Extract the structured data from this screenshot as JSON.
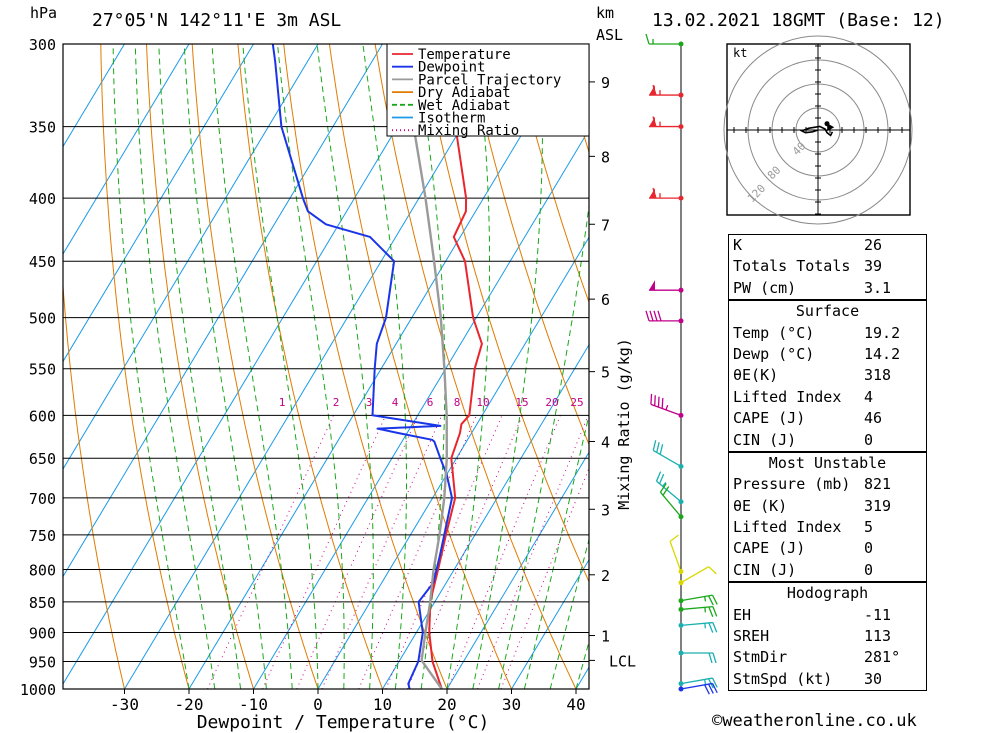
{
  "header": {
    "location": "27°05'N 142°11'E 3m ASL",
    "datetime": "13.02.2021 18GMT (Base: 12)",
    "p_unit": "hPa",
    "km_unit": "km",
    "asl": "ASL"
  },
  "chart_data": {
    "type": "line",
    "title": "",
    "xlabel": "Dewpoint / Temperature (°C)",
    "ylabel": "hPa",
    "secondary_ylabel": "Mixing Ratio (g/kg)",
    "xlim": [
      -40,
      40
    ],
    "ylim": [
      1000,
      300
    ],
    "skew": "skew-T log-p",
    "pressure_ticks": [
      300,
      350,
      400,
      450,
      500,
      550,
      600,
      650,
      700,
      750,
      800,
      850,
      900,
      950,
      1000
    ],
    "temp_ticks": [
      -30,
      -20,
      -10,
      0,
      10,
      20,
      30,
      40
    ],
    "km_ticks": [
      {
        "p": 322,
        "label": "9"
      },
      {
        "p": 370,
        "label": "8"
      },
      {
        "p": 420,
        "label": "7"
      },
      {
        "p": 483,
        "label": "6"
      },
      {
        "p": 553,
        "label": "5"
      },
      {
        "p": 630,
        "label": "4"
      },
      {
        "p": 715,
        "label": "3"
      },
      {
        "p": 808,
        "label": "2"
      },
      {
        "p": 905,
        "label": "1"
      },
      {
        "p": 948,
        "label": "LCL"
      }
    ],
    "mixing_ratio_labels": [
      "1",
      "2",
      "3",
      "4",
      "6",
      "8",
      "10",
      "15",
      "20",
      "25"
    ],
    "mixing_ratio_values": [
      1,
      2,
      3,
      4,
      6,
      8,
      10,
      15,
      20,
      25
    ],
    "legend": [
      {
        "label": "Temperature",
        "color": "#e8262e",
        "style": "solid"
      },
      {
        "label": "Dewpoint",
        "color": "#1a35e8",
        "style": "solid"
      },
      {
        "label": "Parcel Trajectory",
        "color": "#9a9a9a",
        "style": "solid"
      },
      {
        "label": "Dry Adiabat",
        "color": "#e07b00",
        "style": "solid"
      },
      {
        "label": "Wet Adiabat",
        "color": "#1aa81a",
        "style": "dashed"
      },
      {
        "label": "Isotherm",
        "color": "#1a9ae8",
        "style": "solid"
      },
      {
        "label": "Mixing Ratio",
        "color": "#d0008a",
        "style": "dotted"
      }
    ],
    "series": [
      {
        "name": "Temperature",
        "color": "#e8262e",
        "points": [
          [
            1000,
            19.2
          ],
          [
            950,
            15.2
          ],
          [
            900,
            12.0
          ],
          [
            850,
            9.3
          ],
          [
            800,
            7.5
          ],
          [
            750,
            5.5
          ],
          [
            700,
            3.5
          ],
          [
            650,
            -0.8
          ],
          [
            620,
            -1.8
          ],
          [
            610,
            -2.4
          ],
          [
            600,
            -2.0
          ],
          [
            550,
            -5.5
          ],
          [
            525,
            -6.7
          ],
          [
            500,
            -10.5
          ],
          [
            450,
            -17.0
          ],
          [
            430,
            -21.0
          ],
          [
            410,
            -21.5
          ],
          [
            400,
            -22.7
          ],
          [
            350,
            -31.0
          ],
          [
            310,
            -38.0
          ],
          [
            300,
            -39.0
          ]
        ]
      },
      {
        "name": "Dewpoint",
        "color": "#1a35e8",
        "points": [
          [
            1000,
            14.2
          ],
          [
            990,
            13.5
          ],
          [
            950,
            13.0
          ],
          [
            900,
            11.0
          ],
          [
            850,
            7.5
          ],
          [
            820,
            8.0
          ],
          [
            780,
            6.5
          ],
          [
            700,
            3.0
          ],
          [
            670,
            0.0
          ],
          [
            650,
            -2.5
          ],
          [
            630,
            -5.0
          ],
          [
            628,
            -5.5
          ],
          [
            620,
            -11.5
          ],
          [
            615,
            -15.0
          ],
          [
            612,
            -5.5
          ],
          [
            600,
            -17.0
          ],
          [
            550,
            -21.0
          ],
          [
            525,
            -23.0
          ],
          [
            500,
            -24.0
          ],
          [
            450,
            -28.0
          ],
          [
            430,
            -34.0
          ],
          [
            420,
            -42.0
          ],
          [
            410,
            -46.0
          ],
          [
            400,
            -48.0
          ],
          [
            350,
            -58.0
          ],
          [
            310,
            -65.0
          ],
          [
            300,
            -67.0
          ]
        ]
      },
      {
        "name": "Parcel Trajectory",
        "color": "#9a9a9a",
        "points": [
          [
            1000,
            19.2
          ],
          [
            948,
            13.4
          ],
          [
            900,
            11.4
          ],
          [
            850,
            9.3
          ],
          [
            800,
            6.8
          ],
          [
            750,
            4.5
          ],
          [
            700,
            1.8
          ],
          [
            650,
            -1.5
          ],
          [
            600,
            -5.5
          ],
          [
            550,
            -10.2
          ],
          [
            500,
            -15.5
          ],
          [
            450,
            -21.8
          ],
          [
            400,
            -29.0
          ],
          [
            350,
            -37.5
          ],
          [
            300,
            -48.5
          ]
        ]
      }
    ],
    "stats": {
      "K": 26,
      "Totals Totals": 39,
      "PW (cm)": 3.1,
      "Surface": {
        "Temp": 19.2,
        "Dewp": 14.2,
        "thetaE": 318,
        "Lifted Index": 4,
        "CAPE": 46,
        "CIN": 0
      },
      "Most Unstable": {
        "Pressure": 821,
        "thetaE": 319,
        "Lifted Index": 5,
        "CAPE": 0,
        "CIN": 0
      },
      "Hodograph": {
        "EH": -11,
        "SREH": 113,
        "StmDir": 281,
        "StmSpd": 30
      }
    }
  },
  "wind_profile": [
    {
      "p": 300,
      "color": "#1aa81a",
      "spd": 15,
      "dir": 270
    },
    {
      "p": 330,
      "color": "#e8262e",
      "spd": 65,
      "dir": 270
    },
    {
      "p": 350,
      "color": "#e8262e",
      "spd": 65,
      "dir": 270
    },
    {
      "p": 400,
      "color": "#e8262e",
      "spd": 65,
      "dir": 270
    },
    {
      "p": 475,
      "color": "#c0008a",
      "spd": 50,
      "dir": 270
    },
    {
      "p": 503,
      "color": "#c0008a",
      "spd": 40,
      "dir": 270
    },
    {
      "p": 600,
      "color": "#c0008a",
      "spd": 45,
      "dir": 290
    },
    {
      "p": 660,
      "color": "#1ab0b0",
      "spd": 30,
      "dir": 300
    },
    {
      "p": 705,
      "color": "#1ab0b0",
      "spd": 25,
      "dir": 310
    },
    {
      "p": 725,
      "color": "#1aa81a",
      "spd": 20,
      "dir": 320
    },
    {
      "p": 803,
      "color": "#d8d800",
      "spd": 10,
      "dir": 340
    },
    {
      "p": 820,
      "color": "#d8d800",
      "spd": 10,
      "dir": 60
    },
    {
      "p": 848,
      "color": "#1aa81a",
      "spd": 25,
      "dir": 80
    },
    {
      "p": 862,
      "color": "#1aa81a",
      "spd": 25,
      "dir": 85
    },
    {
      "p": 888,
      "color": "#1ab0b0",
      "spd": 25,
      "dir": 85
    },
    {
      "p": 935,
      "color": "#1ab0b0",
      "spd": 20,
      "dir": 90
    },
    {
      "p": 990,
      "color": "#1ab0b0",
      "spd": 25,
      "dir": 80
    },
    {
      "p": 1000,
      "color": "#1a35e8",
      "spd": 30,
      "dir": 80
    }
  ],
  "hodograph": {
    "unit": "kt",
    "ring_labels": [
      "40",
      "80",
      "120"
    ],
    "trace": [
      [
        0,
        0
      ],
      [
        -6,
        2
      ],
      [
        -14,
        3
      ],
      [
        -18,
        1
      ],
      [
        -10,
        -2
      ],
      [
        2,
        -4
      ],
      [
        8,
        -1
      ],
      [
        10,
        3
      ],
      [
        14,
        6
      ],
      [
        16,
        2
      ]
    ],
    "storm_motion": [
      18,
      -3
    ]
  },
  "stats_panel": {
    "top": [
      {
        "label": "K",
        "value": "26"
      },
      {
        "label": "Totals Totals",
        "value": "39"
      },
      {
        "label": "PW (cm)",
        "value": "3.1"
      }
    ],
    "surface": {
      "title": "Surface",
      "rows": [
        {
          "label": "Temp (°C)",
          "value": "19.2"
        },
        {
          "label": "Dewp (°C)",
          "value": "14.2"
        },
        {
          "label": "θE(K)",
          "value": "318"
        },
        {
          "label": "Lifted Index",
          "value": "4"
        },
        {
          "label": "CAPE (J)",
          "value": "46"
        },
        {
          "label": "CIN (J)",
          "value": "0"
        }
      ]
    },
    "most_unstable": {
      "title": "Most Unstable",
      "rows": [
        {
          "label": "Pressure (mb)",
          "value": "821"
        },
        {
          "label": "θE (K)",
          "value": "319"
        },
        {
          "label": "Lifted Index",
          "value": "5"
        },
        {
          "label": "CAPE (J)",
          "value": "0"
        },
        {
          "label": "CIN (J)",
          "value": "0"
        }
      ]
    },
    "hodograph": {
      "title": "Hodograph",
      "rows": [
        {
          "label": "EH",
          "value": "-11"
        },
        {
          "label": "SREH",
          "value": "113"
        },
        {
          "label": "StmDir",
          "value": "281°"
        },
        {
          "label": "StmSpd (kt)",
          "value": "30"
        }
      ]
    }
  },
  "footer": "©weatheronline.co.uk"
}
